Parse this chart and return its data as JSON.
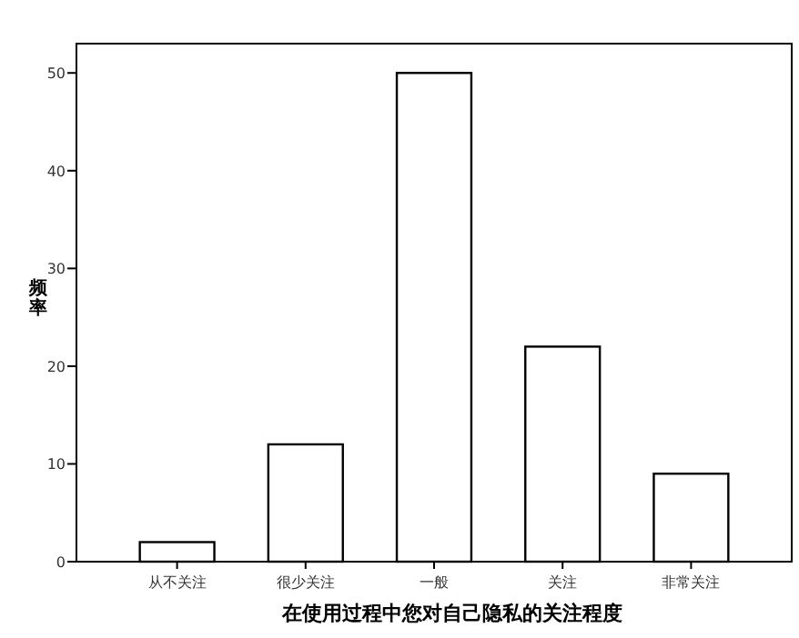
{
  "chart_data": {
    "type": "bar",
    "xlabel": "在使用过程中您对自己隐私的关注程度",
    "ylabel": "频率",
    "categories": [
      "从不关注",
      "很少关注",
      "一般",
      "关注",
      "非常关注"
    ],
    "values": [
      2,
      12,
      50,
      22,
      9
    ],
    "color": "#ffffff",
    "ylim": [
      0,
      53
    ],
    "yticks": [
      0,
      10,
      20,
      30,
      40,
      50
    ]
  }
}
